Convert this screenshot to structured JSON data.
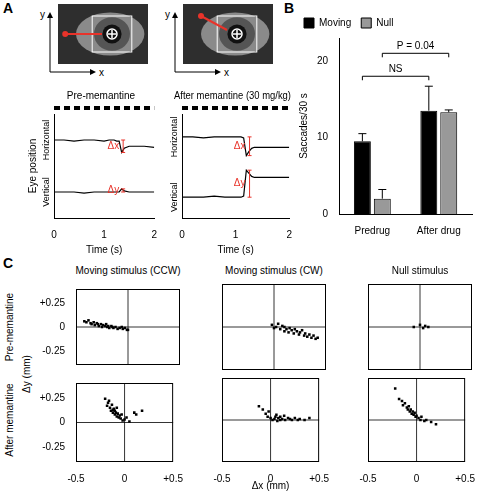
{
  "figure": {
    "panel_labels": [
      "A",
      "B",
      "C"
    ]
  },
  "eye_images": {
    "axis_labels": {
      "x": "x",
      "y": "y"
    }
  },
  "panel_c": {
    "column_titles": [
      "Moving stimulus (CCW)",
      "Moving stimulus (CW)",
      "Null stimulus"
    ],
    "row_labels": [
      "Pre-memantine",
      "After memantine"
    ],
    "x_label": "Δx (mm)",
    "y_label": "Δy (mm)"
  },
  "chart_data": [
    {
      "type": "line",
      "title": "Pre-memantine",
      "x_label": "Time (s)",
      "y_label": "Eye position",
      "x": [
        0,
        0.2,
        0.4,
        0.6,
        0.8,
        1.0,
        1.1,
        1.15,
        1.2,
        1.25,
        1.3,
        1.35,
        1.4,
        1.5,
        1.6,
        1.8,
        2.0
      ],
      "series": [
        {
          "name": "Horizontal",
          "color": "#000000",
          "values": [
            7.5,
            7.5,
            7.4,
            7.5,
            7.5,
            7.4,
            7.5,
            7.5,
            7.5,
            7.4,
            7.4,
            6.3,
            6.7,
            6.9,
            6.9,
            6.9,
            6.8
          ]
        },
        {
          "name": "Vertical",
          "color": "#000000",
          "values": [
            2.5,
            2.5,
            2.5,
            2.4,
            2.5,
            2.5,
            2.5,
            2.5,
            2.5,
            2.5,
            2.5,
            2.8,
            2.6,
            2.5,
            2.5,
            2.5,
            2.5
          ]
        }
      ],
      "xlim": [
        0,
        2
      ],
      "xticks": [
        0,
        1,
        2
      ],
      "ylim": [
        0,
        10
      ],
      "tick_labels": "x",
      "grid": false,
      "annotations": [
        {
          "text": "Δx",
          "x": 1.38,
          "y1": 7.5,
          "y2": 6.3,
          "color": "#e8332a"
        },
        {
          "text": "Δy",
          "x": 1.38,
          "y1": 2.5,
          "y2": 2.8,
          "color": "#e8332a"
        }
      ]
    },
    {
      "type": "line",
      "title": "After memantine (30 mg/kg)",
      "x_label": "Time (s)",
      "x": [
        0,
        0.2,
        0.4,
        0.6,
        0.8,
        1.0,
        1.1,
        1.15,
        1.2,
        1.25,
        1.3,
        1.35,
        1.4,
        1.5,
        1.6,
        1.8,
        2.0
      ],
      "series": [
        {
          "name": "Horizontal",
          "color": "#000000",
          "values": [
            7.8,
            7.8,
            7.7,
            7.8,
            7.8,
            7.8,
            7.8,
            7.7,
            6.0,
            6.4,
            6.7,
            6.8,
            6.8,
            6.8,
            6.8,
            6.8,
            6.8
          ]
        },
        {
          "name": "Vertical",
          "color": "#000000",
          "values": [
            2.0,
            2.0,
            2.0,
            2.1,
            2.0,
            2.0,
            2.0,
            2.1,
            4.6,
            4.3,
            4.0,
            3.9,
            3.9,
            3.9,
            3.9,
            3.9,
            3.9
          ]
        }
      ],
      "xlim": [
        0,
        2
      ],
      "xticks": [
        0,
        1,
        2
      ],
      "ylim": [
        0,
        10
      ],
      "tick_labels": "x",
      "grid": false,
      "annotations": [
        {
          "text": "Δx",
          "x": 1.26,
          "y1": 7.8,
          "y2": 6.0,
          "color": "#e8332a"
        },
        {
          "text": "Δy",
          "x": 1.26,
          "y1": 2.0,
          "y2": 4.6,
          "color": "#e8332a"
        }
      ]
    },
    {
      "type": "bar",
      "y_label": "Saccades/30 s",
      "categories": [
        "Predrug",
        "After drug"
      ],
      "series": [
        {
          "name": "Moving",
          "color": "#000000",
          "values": [
            9.5,
            13.5
          ],
          "errors": [
            1.0,
            3.2
          ]
        },
        {
          "name": "Null",
          "color": "#999999",
          "values": [
            2.0,
            13.3
          ],
          "errors": [
            1.2,
            0.3
          ]
        }
      ],
      "ylim": [
        0,
        23
      ],
      "yticks": [
        0,
        10,
        20
      ],
      "legend": "top-left",
      "grid": false,
      "comparisons": [
        {
          "label": "NS",
          "from": [
            0,
            0
          ],
          "to": [
            0,
            1
          ],
          "y": 18
        },
        {
          "label": "P = 0.04",
          "from": [
            1,
            0
          ],
          "to": [
            1,
            1
          ],
          "y": 21
        }
      ]
    },
    {
      "type": "scatter",
      "color": "#000000",
      "marker": "square",
      "x": [
        -0.42,
        -0.4,
        -0.38,
        -0.36,
        -0.35,
        -0.33,
        -0.32,
        -0.3,
        -0.29,
        -0.28,
        -0.26,
        -0.25,
        -0.24,
        -0.22,
        -0.21,
        -0.2,
        -0.19,
        -0.18,
        -0.16,
        -0.15,
        -0.14,
        -0.12,
        -0.1,
        -0.08,
        -0.06,
        -0.05,
        -0.03,
        -0.01,
        0.0
      ],
      "values": [
        0.06,
        0.05,
        0.07,
        0.04,
        0.03,
        0.05,
        0.02,
        0.04,
        0.03,
        0.01,
        0.03,
        0.0,
        0.02,
        0.01,
        0.03,
        0.0,
        0.01,
        -0.01,
        0.01,
        0.0,
        -0.01,
        0.0,
        -0.02,
        -0.01,
        0.0,
        -0.02,
        -0.01,
        -0.03,
        -0.03
      ],
      "xlim": [
        -0.5,
        0.5
      ],
      "xticks": [
        -0.5,
        0,
        {
          "value": 0.5,
          "label": "+0.5"
        }
      ],
      "ylim": [
        -0.4,
        0.4
      ],
      "yticks": [
        -0.25,
        0,
        {
          "value": 0.25,
          "label": "+0.25"
        }
      ],
      "tick_labels": "y",
      "grid": false
    },
    {
      "type": "scatter",
      "color": "#000000",
      "marker": "square",
      "x": [
        -0.02,
        0.0,
        0.02,
        0.04,
        0.06,
        0.08,
        0.1,
        0.1,
        0.12,
        0.14,
        0.15,
        0.17,
        0.19,
        0.2,
        0.22,
        0.24,
        0.25,
        0.27,
        0.29,
        0.3,
        0.32,
        0.34,
        0.36,
        0.38,
        0.4,
        0.42
      ],
      "values": [
        0.02,
        -0.01,
        0.0,
        0.03,
        -0.02,
        0.01,
        -0.04,
        0.0,
        -0.02,
        -0.05,
        -0.01,
        -0.03,
        -0.06,
        -0.02,
        -0.04,
        -0.07,
        -0.05,
        -0.03,
        -0.08,
        -0.06,
        -0.09,
        -0.07,
        -0.1,
        -0.08,
        -0.11,
        -0.1
      ],
      "xlim": [
        -0.5,
        0.5
      ],
      "xticks": [
        -0.5,
        0,
        {
          "value": 0.5,
          "label": "+0.5"
        }
      ],
      "ylim": [
        -0.4,
        0.4
      ],
      "yticks": [
        -0.25,
        0,
        {
          "value": 0.25,
          "label": "+0.25"
        }
      ],
      "tick_labels": false,
      "grid": false
    },
    {
      "type": "scatter",
      "color": "#000000",
      "marker": "square",
      "x": [
        -0.06,
        0.0,
        0.03,
        0.05,
        0.08
      ],
      "values": [
        0.0,
        0.02,
        -0.01,
        0.01,
        0.0
      ],
      "xlim": [
        -0.5,
        0.5
      ],
      "xticks": [
        -0.5,
        0,
        {
          "value": 0.5,
          "label": "+0.5"
        }
      ],
      "ylim": [
        -0.4,
        0.4
      ],
      "yticks": [
        -0.25,
        0,
        {
          "value": 0.25,
          "label": "+0.25"
        }
      ],
      "tick_labels": false,
      "grid": false
    },
    {
      "type": "scatter",
      "color": "#000000",
      "marker": "square",
      "x": [
        -0.2,
        -0.18,
        -0.17,
        -0.15,
        -0.14,
        -0.13,
        -0.12,
        -0.11,
        -0.1,
        -0.1,
        -0.09,
        -0.08,
        -0.07,
        -0.06,
        -0.05,
        -0.04,
        -0.03,
        -0.02,
        0.0,
        0.02,
        0.05,
        0.1,
        0.12,
        0.18,
        -0.16,
        -0.12,
        -0.08
      ],
      "values": [
        0.24,
        0.17,
        0.2,
        0.15,
        0.12,
        0.18,
        0.1,
        0.14,
        0.08,
        0.12,
        0.1,
        0.06,
        0.09,
        0.05,
        0.07,
        0.04,
        0.08,
        0.02,
        0.03,
        0.05,
        0.01,
        0.1,
        0.08,
        0.12,
        0.22,
        0.13,
        0.15
      ],
      "xlim": [
        -0.5,
        0.5
      ],
      "xticks": [
        -0.5,
        0,
        {
          "value": 0.5,
          "label": "+0.5"
        }
      ],
      "ylim": [
        -0.4,
        0.4
      ],
      "yticks": [
        -0.25,
        0,
        {
          "value": 0.25,
          "label": "+0.25"
        }
      ],
      "tick_labels": true,
      "grid": false
    },
    {
      "type": "scatter",
      "color": "#000000",
      "marker": "square",
      "x": [
        -0.12,
        -0.08,
        -0.05,
        -0.03,
        0.0,
        0.02,
        0.04,
        0.05,
        0.07,
        0.08,
        0.1,
        0.12,
        0.14,
        0.15,
        0.18,
        0.2,
        0.22,
        0.25,
        0.28,
        0.3,
        0.35,
        0.4,
        -0.02,
        0.06,
        0.1
      ],
      "values": [
        0.13,
        0.1,
        0.06,
        0.03,
        0.02,
        0.0,
        0.01,
        0.03,
        -0.01,
        0.02,
        0.0,
        0.01,
        0.04,
        0.0,
        0.02,
        0.01,
        0.0,
        0.02,
        0.0,
        0.01,
        0.0,
        0.02,
        0.08,
        0.05,
        0.03
      ],
      "xlim": [
        -0.5,
        0.5
      ],
      "xticks": [
        -0.5,
        0,
        {
          "value": 0.5,
          "label": "+0.5"
        }
      ],
      "ylim": [
        -0.4,
        0.4
      ],
      "yticks": [
        -0.25,
        0,
        {
          "value": 0.25,
          "label": "+0.25"
        }
      ],
      "tick_labels": "x",
      "grid": false
    },
    {
      "type": "scatter",
      "color": "#000000",
      "marker": "square",
      "x": [
        -0.22,
        -0.18,
        -0.15,
        -0.14,
        -0.12,
        -0.1,
        -0.09,
        -0.08,
        -0.07,
        -0.06,
        -0.05,
        -0.04,
        -0.03,
        -0.02,
        -0.01,
        0.0,
        0.02,
        0.04,
        0.05,
        0.08,
        0.1,
        0.15,
        0.2
      ],
      "values": [
        0.3,
        0.2,
        0.18,
        0.14,
        0.16,
        0.12,
        0.1,
        0.13,
        0.08,
        0.1,
        0.06,
        0.08,
        0.05,
        0.07,
        0.03,
        0.04,
        0.02,
        0.0,
        0.03,
        -0.01,
        0.0,
        -0.02,
        -0.04
      ],
      "xlim": [
        -0.5,
        0.5
      ],
      "xticks": [
        -0.5,
        0,
        {
          "value": 0.5,
          "label": "+0.5"
        }
      ],
      "ylim": [
        -0.4,
        0.4
      ],
      "yticks": [
        -0.25,
        0,
        {
          "value": 0.25,
          "label": "+0.25"
        }
      ],
      "tick_labels": "x",
      "grid": false
    }
  ]
}
